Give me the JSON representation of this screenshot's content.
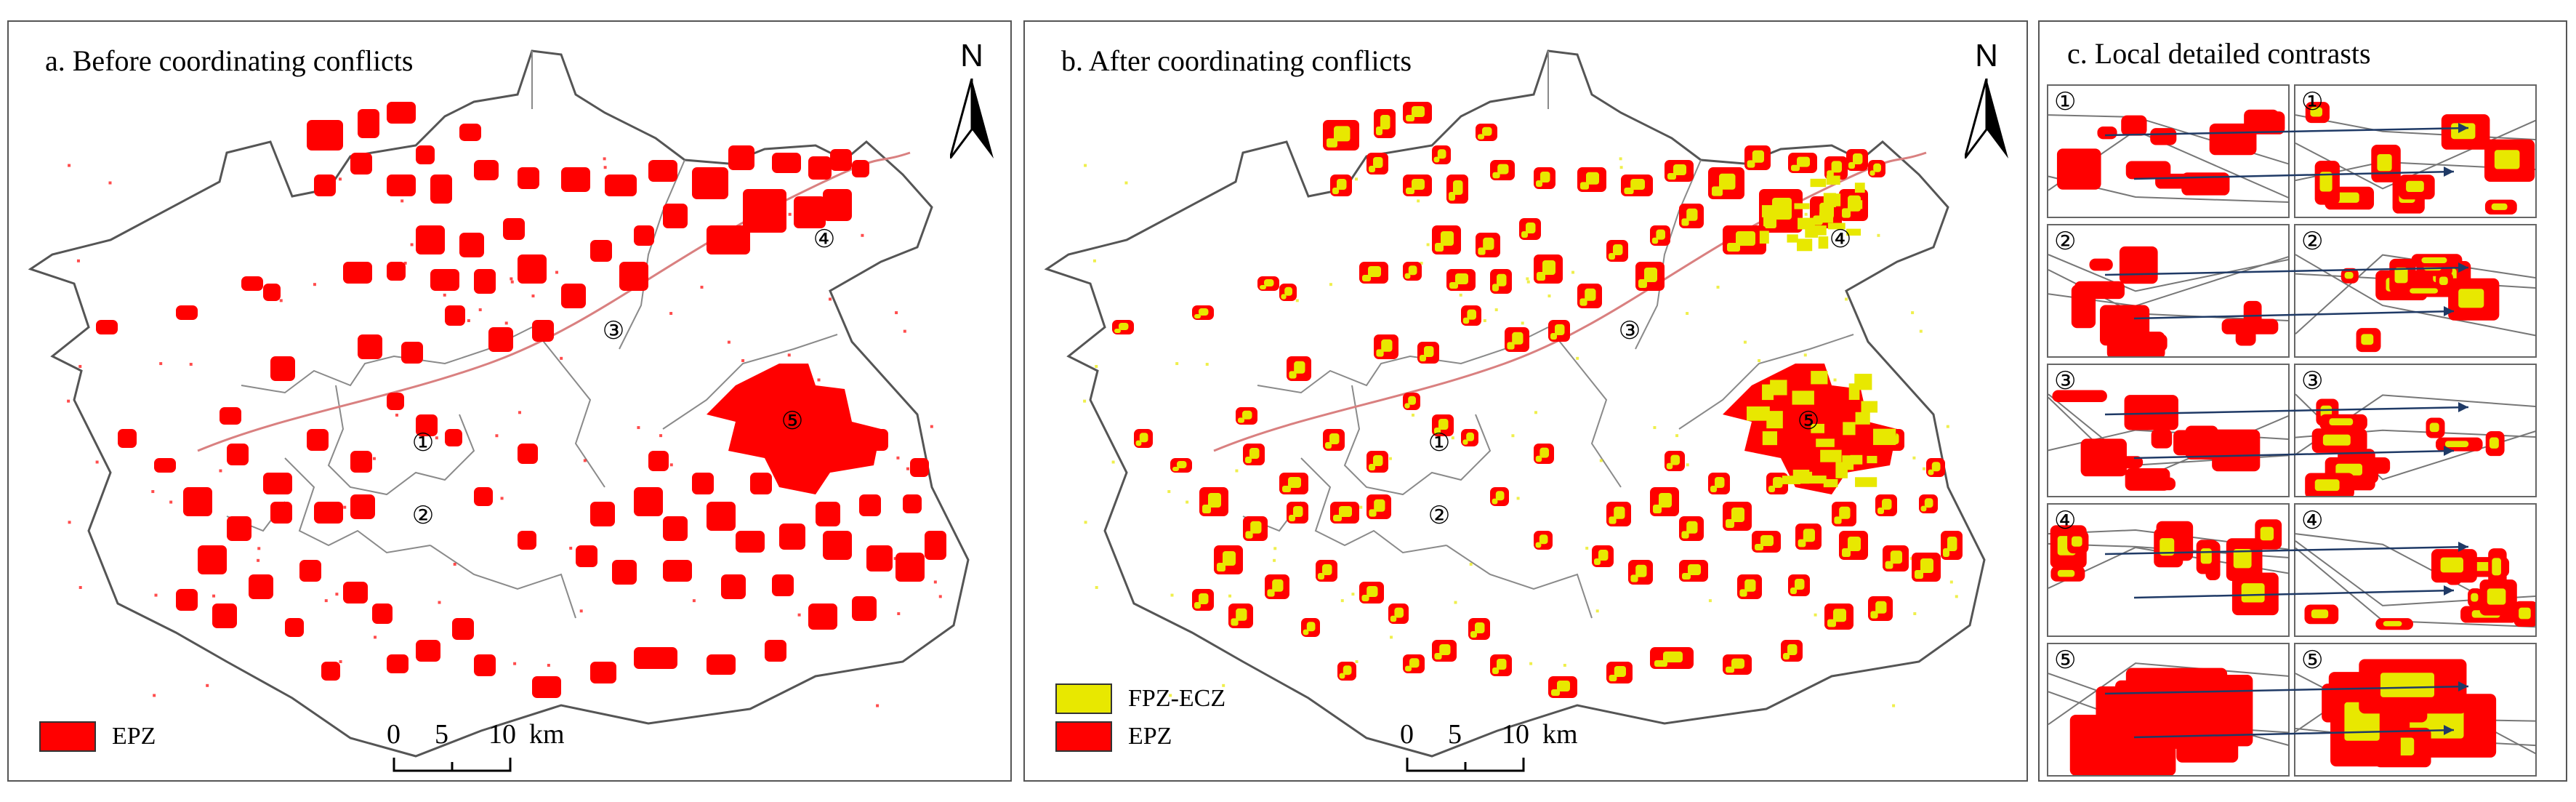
{
  "colors": {
    "epz": "#ff0000",
    "fpz_ecz": "#e8e800",
    "border": "#555555",
    "arrow": "#1f3a66"
  },
  "panel_a": {
    "title": "a. Before coordinating conflicts",
    "north": "N",
    "legend": [
      {
        "label": "EPZ",
        "color_key": "epz"
      }
    ],
    "scale": {
      "ticks": [
        "0",
        "5",
        "10"
      ],
      "unit": "km"
    },
    "markers": [
      "①",
      "②",
      "③",
      "④",
      "⑤"
    ]
  },
  "panel_b": {
    "title": "b.  After coordinating conflicts",
    "north": "N",
    "legend": [
      {
        "label": "FPZ-ECZ",
        "color_key": "fpz_ecz"
      },
      {
        "label": "EPZ",
        "color_key": "epz"
      }
    ],
    "scale": {
      "ticks": [
        "0",
        "5",
        "10"
      ],
      "unit": "km"
    },
    "markers": [
      "①",
      "②",
      "③",
      "④",
      "⑤"
    ]
  },
  "panel_c": {
    "title": "c. Local detailed contrasts",
    "rows": [
      {
        "left": "①",
        "right": "①"
      },
      {
        "left": "②",
        "right": "②"
      },
      {
        "left": "③",
        "right": "③"
      },
      {
        "left": "④",
        "right": "④"
      },
      {
        "left": "⑤",
        "right": "⑤"
      }
    ]
  }
}
